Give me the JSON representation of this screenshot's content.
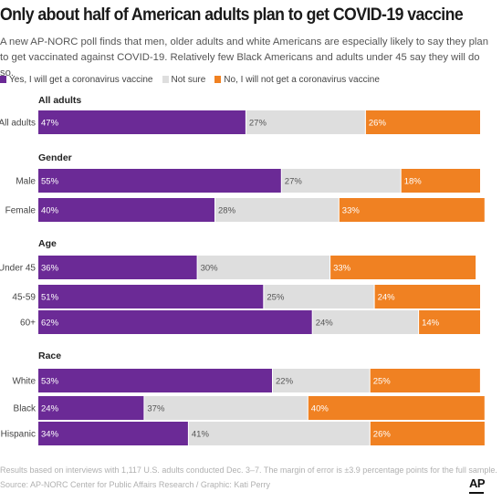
{
  "header": {
    "title": "Only about half of American adults plan to get COVID-19 vaccine",
    "subtitle": "A new AP-NORC poll finds that men, older adults and white Americans are especially likely to say they plan to get vaccinated against COVID-19. Relatively few Black Americans and adults under 45 say they will do so."
  },
  "colors": {
    "yes": "#6b2a96",
    "notsure": "#dedede",
    "no": "#f08122"
  },
  "chart_data": {
    "type": "bar",
    "orientation": "horizontal",
    "stacked": true,
    "unit": "%",
    "xlim": [
      0,
      100
    ],
    "series": [
      {
        "name": "Yes, I will get a coronavirus vaccine",
        "key": "yes",
        "color": "#6b2a96"
      },
      {
        "name": "Not sure",
        "key": "notsure",
        "color": "#dedede"
      },
      {
        "name": "No, I will not get a coronavirus vaccine",
        "key": "no",
        "color": "#f08122"
      }
    ],
    "groups": [
      {
        "title": "All adults",
        "rows": [
          {
            "label": "All adults",
            "values": [
              47,
              27,
              26
            ]
          }
        ]
      },
      {
        "title": "Gender",
        "rows": [
          {
            "label": "Male",
            "values": [
              55,
              27,
              18
            ]
          },
          {
            "label": "Female",
            "values": [
              40,
              28,
              33
            ]
          }
        ]
      },
      {
        "title": "Age",
        "rows": [
          {
            "label": "Under 45",
            "values": [
              36,
              30,
              33
            ]
          },
          {
            "label": "45-59",
            "values": [
              51,
              25,
              24
            ]
          },
          {
            "label": "60+",
            "values": [
              62,
              24,
              14
            ]
          }
        ]
      },
      {
        "title": "Race",
        "rows": [
          {
            "label": "White",
            "values": [
              53,
              22,
              25
            ]
          },
          {
            "label": "Black",
            "values": [
              24,
              37,
              40
            ]
          },
          {
            "label": "Hispanic",
            "values": [
              34,
              41,
              26
            ]
          }
        ]
      }
    ]
  },
  "footer": {
    "note": "Results based on interviews with 1,117 U.S. adults conducted Dec. 3–7. The margin of error is ±3.9 percentage points for the full sample.",
    "source": "Source: AP-NORC Center for Public Affairs Research / Graphic: Kati Perry",
    "logo": "AP"
  }
}
